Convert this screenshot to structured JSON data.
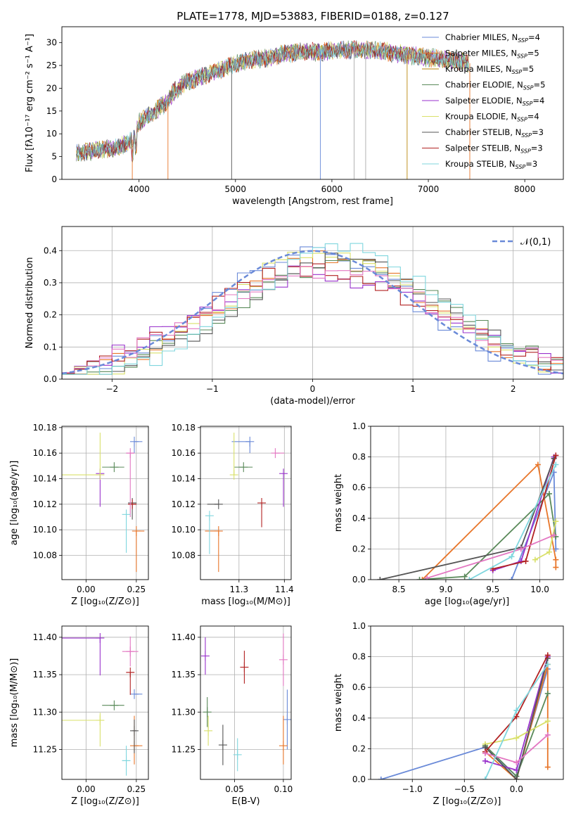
{
  "figure": {
    "title": "PLATE=1778, MJD=53883, FIBERID=0188, z=0.127"
  },
  "colors": {
    "chabrier_miles": "#6a8ad8",
    "salpeter_miles": "#e8762a",
    "kroupa_miles": "#b8860b",
    "chabrier_elodie": "#5a8a5a",
    "salpeter_elodie": "#9932cc",
    "kroupa_elodie": "#d9e06a",
    "chabrier_stelib": "#555555",
    "salpeter_stelib": "#b22222",
    "kroupa_stelib": "#7fd6de",
    "pink": "#e377c2",
    "grid": "#b0b0b0"
  },
  "chart_data": [
    {
      "id": "spectrum",
      "type": "line",
      "xlabel": "wavelength [Angstrom, rest frame]",
      "ylabel": "Flux [fλ10⁻¹⁷ erg cm⁻² s⁻¹ A⁻¹]",
      "xlim": [
        3200,
        8400
      ],
      "ylim": [
        0,
        33.5
      ],
      "xticks": [
        "4000",
        "5000",
        "6000",
        "7000",
        "8000"
      ],
      "yticks": [
        "0",
        "5",
        "10",
        "15",
        "20",
        "25",
        "30"
      ],
      "legend_position": "top-right",
      "legend": [
        {
          "label": "Chabrier MILES, N",
          "sub": "SSP",
          "tail": "=4"
        },
        {
          "label": "Salpeter MILES, N",
          "sub": "SSP",
          "tail": "=5"
        },
        {
          "label": "Kroupa MILES, N",
          "sub": "SSP",
          "tail": "=5"
        },
        {
          "label": "Chabrier ELODIE, N",
          "sub": "SSP",
          "tail": "=5"
        },
        {
          "label": "Salpeter ELODIE, N",
          "sub": "SSP",
          "tail": "=4"
        },
        {
          "label": "Kroupa ELODIE, N",
          "sub": "SSP",
          "tail": "=4"
        },
        {
          "label": "Chabrier STELIB, N",
          "sub": "SSP",
          "tail": "=3"
        },
        {
          "label": "Salpeter STELIB, N",
          "sub": "SSP",
          "tail": "=3"
        },
        {
          "label": "Kroupa STELIB, N",
          "sub": "SSP",
          "tail": "=3"
        }
      ],
      "continuum": [
        [
          3350,
          5.8
        ],
        [
          3600,
          6.5
        ],
        [
          3800,
          7.0
        ],
        [
          3950,
          9.0
        ],
        [
          4000,
          12.5
        ],
        [
          4100,
          14.0
        ],
        [
          4300,
          17.0
        ],
        [
          4350,
          19.0
        ],
        [
          4500,
          21.5
        ],
        [
          4700,
          23.0
        ],
        [
          4900,
          24.5
        ],
        [
          5100,
          26.0
        ],
        [
          5300,
          26.5
        ],
        [
          5500,
          27.5
        ],
        [
          5700,
          28.0
        ],
        [
          5900,
          28.0
        ],
        [
          6100,
          28.3
        ],
        [
          6300,
          28.5
        ],
        [
          6500,
          28.3
        ],
        [
          6700,
          27.5
        ],
        [
          6900,
          27.0
        ],
        [
          7100,
          26.5
        ],
        [
          7300,
          26.0
        ],
        [
          7400,
          25.5
        ]
      ]
    },
    {
      "id": "residuals",
      "type": "histogram",
      "xlabel": "(data-model)/error",
      "ylabel": "Normed distribution",
      "xlim": [
        -2.5,
        2.5
      ],
      "ylim": [
        0,
        0.475
      ],
      "xticks": [
        "−2",
        "−1",
        "0",
        "1",
        "2"
      ],
      "yticks": [
        "0.0",
        "0.1",
        "0.2",
        "0.3",
        "0.4"
      ],
      "legend_position": "top-right",
      "normal_label": "𝒩(0,1)",
      "bins": 40
    },
    {
      "id": "age_vs_Z",
      "type": "errorbar",
      "xlabel": "Z [log₁₀(Z/Z⊙)]",
      "ylabel": "age  [log₁₀(age/yr)]",
      "xlim": [
        -0.12,
        0.31
      ],
      "ylim": [
        10.061,
        10.181
      ],
      "xticks": [
        "0.00",
        "0.25"
      ],
      "yticks": [
        "10.08",
        "10.10",
        "10.12",
        "10.14",
        "10.16",
        "10.18"
      ],
      "points": [
        {
          "c": "chabrier_miles",
          "x": 0.24,
          "xe": [
            0.0,
            0.04
          ],
          "y": 10.169,
          "ye": [
            0.009,
            0.0
          ]
        },
        {
          "c": "salpeter_miles",
          "x": 0.25,
          "xe": [
            0.0,
            0.04
          ],
          "y": 10.099,
          "ye": [
            0.032,
            0.0
          ]
        },
        {
          "c": "chabrier_elodie",
          "x": 0.14,
          "xe": [
            0.06,
            0.05
          ],
          "y": 10.149,
          "ye": [
            0.0,
            0.0
          ]
        },
        {
          "c": "salpeter_elodie",
          "x": 0.07,
          "xe": [
            0.0,
            0.0
          ],
          "y": 10.144,
          "ye": [
            0.026,
            0.0
          ]
        },
        {
          "c": "kroupa_elodie",
          "x": 0.07,
          "xe": [
            0.2,
            0.0
          ],
          "y": 10.143,
          "ye": [
            0.0,
            0.033
          ]
        },
        {
          "c": "chabrier_stelib",
          "x": 0.23,
          "xe": [
            0.02,
            0.02
          ],
          "y": 10.121,
          "ye": [
            0.013,
            0.0
          ]
        },
        {
          "c": "salpeter_stelib",
          "x": 0.23,
          "xe": [
            0.02,
            0.02
          ],
          "y": 10.12,
          "ye": [
            0.0,
            0.0
          ]
        },
        {
          "c": "pink",
          "x": 0.22,
          "xe": [
            0.02,
            0.02
          ],
          "y": 10.16,
          "ye": [
            0.05,
            0.0
          ]
        },
        {
          "c": "kroupa_stelib",
          "x": 0.2,
          "xe": [
            0.0,
            0.0
          ],
          "y": 10.112,
          "ye": [
            0.03,
            0.0
          ]
        }
      ]
    },
    {
      "id": "age_vs_mass",
      "type": "errorbar",
      "xlabel": "mass [log₁₀(M/M⊙)]",
      "ylabel": "",
      "xlim": [
        11.215,
        11.415
      ],
      "ylim": [
        10.061,
        10.181
      ],
      "xticks": [
        "11.3",
        "11.4"
      ],
      "yticks": [
        "10.08",
        "10.10",
        "10.12",
        "10.14",
        "10.16",
        "10.18"
      ],
      "points": [
        {
          "c": "chabrier_miles",
          "x": 11.324,
          "xe": [
            0.04,
            0.0
          ],
          "y": 10.169,
          "ye": [
            0.009,
            0.0
          ]
        },
        {
          "c": "salpeter_miles",
          "x": 11.255,
          "xe": [
            0.03,
            0.0
          ],
          "y": 10.099,
          "ye": [
            0.032,
            0.0
          ]
        },
        {
          "c": "chabrier_elodie",
          "x": 11.31,
          "xe": [
            0.02,
            0.02
          ],
          "y": 10.149,
          "ye": [
            0.0,
            0.0
          ]
        },
        {
          "c": "salpeter_elodie",
          "x": 11.398,
          "xe": [
            0.0,
            0.0
          ],
          "y": 10.144,
          "ye": [
            0.026,
            0.0
          ]
        },
        {
          "c": "kroupa_elodie",
          "x": 11.289,
          "xe": [
            0.0,
            0.0
          ],
          "y": 10.143,
          "ye": [
            0.0,
            0.033
          ]
        },
        {
          "c": "chabrier_stelib",
          "x": 11.255,
          "xe": [
            0.025,
            0.0
          ],
          "y": 10.12,
          "ye": [
            0.0,
            0.0
          ]
        },
        {
          "c": "salpeter_stelib",
          "x": 11.35,
          "xe": [
            0.0,
            0.0
          ],
          "y": 10.121,
          "ye": [
            0.019,
            0.0
          ]
        },
        {
          "c": "pink",
          "x": 11.38,
          "xe": [
            0.0,
            0.02
          ],
          "y": 10.16,
          "ye": [
            0.0,
            0.0
          ]
        },
        {
          "c": "kroupa_stelib",
          "x": 11.235,
          "xe": [
            0.0,
            0.0
          ],
          "y": 10.111,
          "ye": [
            0.03,
            0.0
          ]
        }
      ]
    },
    {
      "id": "weight_vs_age",
      "type": "line",
      "xlabel": "age  [log₁₀(age/yr)]",
      "ylabel": "mass weight",
      "xlim": [
        8.2,
        10.25
      ],
      "ylim": [
        0,
        1.0
      ],
      "xticks": [
        "8.5",
        "9.0",
        "9.5",
        "10.0"
      ],
      "yticks": [
        "0.0",
        "0.2",
        "0.4",
        "0.6",
        "0.8",
        "1.0"
      ],
      "series": [
        {
          "c": "chabrier_miles",
          "x": [
            9.7,
            10.15,
            10.17
          ],
          "y": [
            0.0,
            0.7,
            0.2
          ]
        },
        {
          "c": "salpeter_miles",
          "x": [
            8.75,
            9.98,
            10.17,
            10.17
          ],
          "y": [
            0.0,
            0.75,
            0.13,
            0.08
          ]
        },
        {
          "c": "chabrier_elodie",
          "x": [
            8.72,
            9.2,
            10.1,
            10.17
          ],
          "y": [
            0.0,
            0.02,
            0.56,
            0.28
          ]
        },
        {
          "c": "salpeter_elodie",
          "x": [
            9.5,
            9.8,
            10.15
          ],
          "y": [
            0.06,
            0.12,
            0.8
          ]
        },
        {
          "c": "kroupa_elodie",
          "x": [
            9.95,
            10.1,
            10.17
          ],
          "y": [
            0.13,
            0.18,
            0.38
          ]
        },
        {
          "c": "chabrier_stelib",
          "x": [
            8.3,
            9.8,
            10.15
          ],
          "y": [
            0.0,
            0.21,
            0.79
          ]
        },
        {
          "c": "salpeter_stelib",
          "x": [
            9.5,
            9.85,
            10.17
          ],
          "y": [
            0.07,
            0.12,
            0.81
          ]
        },
        {
          "c": "pink",
          "x": [
            8.8,
            9.8,
            10.15
          ],
          "y": [
            0.01,
            0.2,
            0.29
          ]
        },
        {
          "c": "kroupa_stelib",
          "x": [
            9.25,
            9.7,
            10.17
          ],
          "y": [
            0.0,
            0.15,
            0.75
          ]
        }
      ]
    },
    {
      "id": "mass_vs_Z",
      "type": "errorbar",
      "xlabel": "Z [log₁₀(Z/Z⊙)]",
      "ylabel": "mass [log₁₀(M/M⊙)]",
      "xlim": [
        -0.12,
        0.31
      ],
      "ylim": [
        11.21,
        11.415
      ],
      "xticks": [
        "0.00",
        "0.25"
      ],
      "yticks": [
        "11.25",
        "11.30",
        "11.35",
        "11.40"
      ],
      "points": [
        {
          "c": "chabrier_miles",
          "x": 0.24,
          "xe": [
            0.0,
            0.04
          ],
          "y": 11.324,
          "ye": [
            0.0,
            0.0
          ]
        },
        {
          "c": "salpeter_miles",
          "x": 0.24,
          "xe": [
            0.0,
            0.04
          ],
          "y": 11.255,
          "ye": [
            0.025,
            0.04
          ]
        },
        {
          "c": "chabrier_elodie",
          "x": 0.14,
          "xe": [
            0.06,
            0.05
          ],
          "y": 11.309,
          "ye": [
            0.0,
            0.0
          ]
        },
        {
          "c": "salpeter_elodie",
          "x": 0.07,
          "xe": [
            0.2,
            0.0
          ],
          "y": 11.399,
          "ye": [
            0.05,
            0.0
          ]
        },
        {
          "c": "kroupa_elodie",
          "x": 0.07,
          "xe": [
            0.2,
            0.0
          ],
          "y": 11.289,
          "ye": [
            0.035,
            0.01
          ]
        },
        {
          "c": "chabrier_stelib",
          "x": 0.24,
          "xe": [
            0.01,
            0.01
          ],
          "y": 11.275,
          "ye": [
            0.03,
            0.015
          ]
        },
        {
          "c": "salpeter_stelib",
          "x": 0.22,
          "xe": [
            0.02,
            0.02
          ],
          "y": 11.353,
          "ye": [
            0.03,
            0.0
          ]
        },
        {
          "c": "pink",
          "x": 0.22,
          "xe": [
            0.04,
            0.04
          ],
          "y": 11.381,
          "ye": [
            0.02,
            0.02
          ]
        },
        {
          "c": "kroupa_stelib",
          "x": 0.2,
          "xe": [
            0.02,
            0.02
          ],
          "y": 11.235,
          "ye": [
            0.02,
            0.02
          ]
        }
      ]
    },
    {
      "id": "mass_vs_ebv",
      "type": "errorbar",
      "xlabel": "E(B-V)",
      "ylabel": "",
      "xlim": [
        0.015,
        0.108
      ],
      "ylim": [
        11.21,
        11.415
      ],
      "xticks": [
        "0.05",
        "0.10"
      ],
      "yticks": [
        "11.25",
        "11.30",
        "11.35",
        "11.40"
      ],
      "points": [
        {
          "c": "chabrier_miles",
          "x": 0.104,
          "xe": [
            0,
            0
          ],
          "y": 11.29,
          "ye": [
            0.04,
            0.04
          ]
        },
        {
          "c": "salpeter_miles",
          "x": 0.1,
          "xe": [
            0,
            0
          ],
          "y": 11.255,
          "ye": [
            0.025,
            0.04
          ]
        },
        {
          "c": "chabrier_elodie",
          "x": 0.022,
          "xe": [
            0,
            0
          ],
          "y": 11.3,
          "ye": [
            0.02,
            0.02
          ]
        },
        {
          "c": "salpeter_elodie",
          "x": 0.02,
          "xe": [
            0,
            0
          ],
          "y": 11.375,
          "ye": [
            0.025,
            0.025
          ]
        },
        {
          "c": "kroupa_elodie",
          "x": 0.023,
          "xe": [
            0,
            0
          ],
          "y": 11.275,
          "ye": [
            0.02,
            0.02
          ]
        },
        {
          "c": "chabrier_stelib",
          "x": 0.038,
          "xe": [
            0,
            0
          ],
          "y": 11.256,
          "ye": [
            0.027,
            0.027
          ]
        },
        {
          "c": "salpeter_stelib",
          "x": 0.06,
          "xe": [
            0,
            0
          ],
          "y": 11.36,
          "ye": [
            0.022,
            0.022
          ]
        },
        {
          "c": "pink",
          "x": 0.1,
          "xe": [
            0,
            0
          ],
          "y": 11.37,
          "ye": [
            0.035,
            0.035
          ]
        },
        {
          "c": "kroupa_stelib",
          "x": 0.053,
          "xe": [
            0,
            0
          ],
          "y": 11.243,
          "ye": [
            0.022,
            0.022
          ]
        }
      ]
    },
    {
      "id": "weight_vs_Z",
      "type": "line",
      "xlabel": "Z [log₁₀(Z/Z⊙)]",
      "ylabel": "mass weight",
      "xlim": [
        -1.4,
        0.45
      ],
      "ylim": [
        0,
        1.0
      ],
      "xticks": [
        "−1.0",
        "−0.5",
        "0.0"
      ],
      "yticks": [
        "0.0",
        "0.2",
        "0.4",
        "0.6",
        "0.8",
        "1.0"
      ],
      "series": [
        {
          "c": "chabrier_miles",
          "x": [
            -1.3,
            -0.3,
            0.0,
            0.3
          ],
          "y": [
            0.0,
            0.21,
            0.02,
            0.72
          ]
        },
        {
          "c": "salpeter_miles",
          "x": [
            -0.3,
            0.0,
            0.3,
            0.3
          ],
          "y": [
            0.18,
            0.0,
            0.75,
            0.08
          ]
        },
        {
          "c": "chabrier_elodie",
          "x": [
            -0.3,
            0.0,
            0.3
          ],
          "y": [
            0.22,
            0.02,
            0.56
          ]
        },
        {
          "c": "salpeter_elodie",
          "x": [
            -0.3,
            0.0,
            0.3
          ],
          "y": [
            0.12,
            0.06,
            0.8
          ]
        },
        {
          "c": "kroupa_elodie",
          "x": [
            -0.3,
            0.0,
            0.3
          ],
          "y": [
            0.23,
            0.27,
            0.38
          ]
        },
        {
          "c": "chabrier_stelib",
          "x": [
            -0.3,
            0.0,
            0.3
          ],
          "y": [
            0.21,
            0.0,
            0.79
          ]
        },
        {
          "c": "salpeter_stelib",
          "x": [
            -0.3,
            0.0,
            0.3
          ],
          "y": [
            0.18,
            0.41,
            0.81
          ]
        },
        {
          "c": "pink",
          "x": [
            -0.3,
            0.0,
            0.3
          ],
          "y": [
            0.17,
            0.11,
            0.29
          ]
        },
        {
          "c": "kroupa_stelib",
          "x": [
            -0.3,
            0.0,
            0.3
          ],
          "y": [
            0.0,
            0.45,
            0.75
          ]
        }
      ]
    }
  ]
}
